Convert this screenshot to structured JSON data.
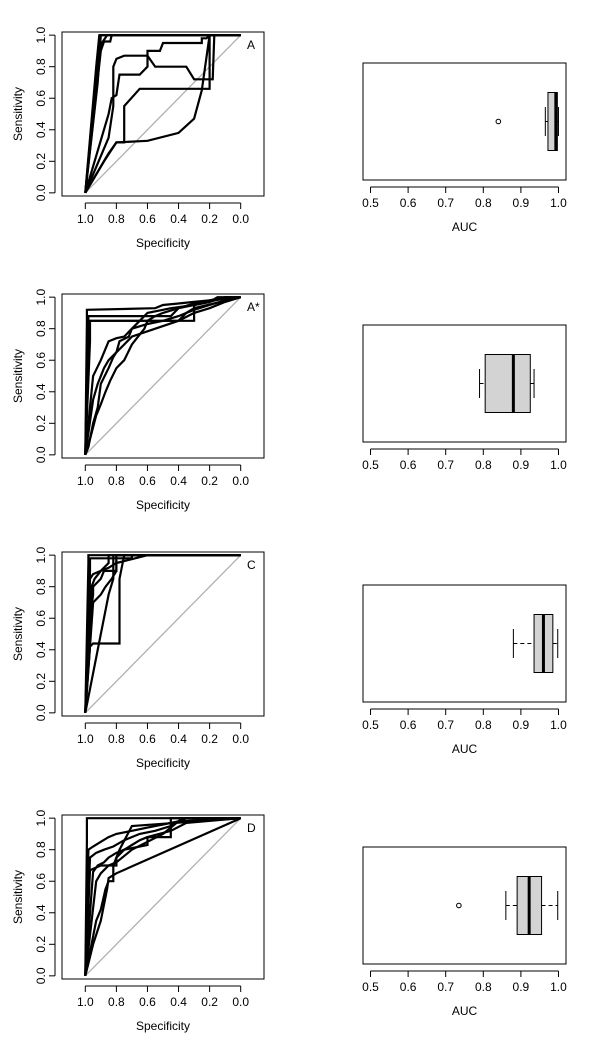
{
  "chart_data": [
    {
      "type": "line",
      "panel_label": "A",
      "xlabel": "Specificity",
      "ylabel": "Sensitivity",
      "x_ticks": [
        "1.0",
        "0.8",
        "0.6",
        "0.4",
        "0.2",
        "0.0"
      ],
      "y_ticks": [
        "0.0",
        "0.2",
        "0.4",
        "0.6",
        "0.8",
        "1.0"
      ],
      "xlim": [
        1.15,
        -0.15
      ],
      "ylim": [
        -0.02,
        1.02
      ],
      "x_reversed": true,
      "series": [
        {
          "x": [
            1.0,
            0.92,
            0.9,
            0.0
          ],
          "y": [
            0.0,
            0.7,
            1.0,
            1.0
          ]
        },
        {
          "x": [
            1.0,
            0.93,
            0.91,
            0.0
          ],
          "y": [
            0.0,
            0.8,
            1.0,
            1.0
          ]
        },
        {
          "x": [
            1.0,
            0.92,
            0.9,
            0.88,
            0.86,
            0.0
          ],
          "y": [
            0.0,
            0.85,
            0.94,
            0.97,
            1.0,
            1.0
          ]
        },
        {
          "x": [
            1.0,
            0.9,
            0.88,
            0.84,
            0.83,
            0.0
          ],
          "y": [
            0.0,
            0.9,
            0.96,
            0.96,
            1.0,
            1.0
          ]
        },
        {
          "x": [
            1.0,
            0.85,
            0.83,
            0.8,
            0.78,
            0.65,
            0.6,
            0.6,
            0.52,
            0.5,
            0.25,
            0.25,
            0.22,
            0.2,
            0.0
          ],
          "y": [
            0.0,
            0.5,
            0.6,
            0.62,
            0.75,
            0.75,
            0.8,
            0.9,
            0.9,
            0.95,
            0.95,
            0.98,
            0.98,
            1.0,
            1.0
          ]
        },
        {
          "x": [
            1.0,
            0.85,
            0.82,
            0.82,
            0.8,
            0.75,
            0.6,
            0.55,
            0.35,
            0.3,
            0.18,
            0.17,
            0.0
          ],
          "y": [
            0.0,
            0.35,
            0.55,
            0.8,
            0.85,
            0.87,
            0.87,
            0.8,
            0.8,
            0.72,
            0.72,
            1.0,
            1.0
          ]
        },
        {
          "x": [
            1.0,
            0.88,
            0.8,
            0.75,
            0.75,
            0.65,
            0.65,
            0.3,
            0.2,
            0.2,
            0.0
          ],
          "y": [
            0.0,
            0.2,
            0.32,
            0.32,
            0.55,
            0.66,
            0.66,
            0.66,
            0.66,
            1.0,
            1.0
          ]
        },
        {
          "x": [
            1.0,
            0.85,
            0.8,
            0.6,
            0.4,
            0.3,
            0.25,
            0.2,
            0.0
          ],
          "y": [
            0.0,
            0.25,
            0.32,
            0.33,
            0.38,
            0.47,
            0.65,
            1.0,
            1.0
          ]
        }
      ]
    },
    {
      "type": "boxplot",
      "xlabel": "AUC",
      "x_ticks": [
        "0.5",
        "0.6",
        "0.7",
        "0.8",
        "0.9",
        "1.0"
      ],
      "xlim": [
        0.48,
        1.02
      ],
      "box": {
        "whisker_low": 0.965,
        "q1": 0.972,
        "median": 0.993,
        "q3": 0.997,
        "whisker_high": 1.0,
        "outliers": [
          0.84
        ]
      }
    },
    {
      "type": "line",
      "panel_label": "A*",
      "xlabel": "Specificity",
      "ylabel": "Sensitivity",
      "x_ticks": [
        "1.0",
        "0.8",
        "0.6",
        "0.4",
        "0.2",
        "0.0"
      ],
      "y_ticks": [
        "0.0",
        "0.2",
        "0.4",
        "0.6",
        "0.8",
        "1.0"
      ],
      "xlim": [
        1.15,
        -0.15
      ],
      "ylim": [
        -0.02,
        1.02
      ],
      "x_reversed": true,
      "series": [
        {
          "x": [
            1.0,
            0.99,
            0.99,
            0.55,
            0.5,
            0.4,
            0.3,
            0.2,
            0.1,
            0.0
          ],
          "y": [
            0.0,
            0.84,
            0.92,
            0.93,
            0.95,
            0.96,
            0.97,
            0.98,
            1.0,
            1.0
          ]
        },
        {
          "x": [
            1.0,
            0.98,
            0.98,
            0.45,
            0.4,
            0.3,
            0.2,
            0.1,
            0.0
          ],
          "y": [
            0.0,
            0.88,
            0.88,
            0.88,
            0.93,
            0.95,
            0.97,
            1.0,
            1.0
          ]
        },
        {
          "x": [
            1.0,
            0.98,
            0.98,
            0.3,
            0.3,
            0.2,
            0.15,
            0.0
          ],
          "y": [
            0.0,
            0.82,
            0.85,
            0.85,
            0.95,
            0.97,
            1.0,
            1.0
          ]
        },
        {
          "x": [
            1.0,
            0.97,
            0.97,
            0.4,
            0.35,
            0.3,
            0.0
          ],
          "y": [
            0.0,
            0.72,
            0.85,
            0.85,
            0.9,
            0.93,
            1.0
          ]
        },
        {
          "x": [
            1.0,
            0.95,
            0.9,
            0.85,
            0.8,
            0.75,
            0.7,
            0.65,
            0.6,
            0.5,
            0.45,
            0.3,
            0.2,
            0.0
          ],
          "y": [
            0.0,
            0.5,
            0.6,
            0.72,
            0.74,
            0.75,
            0.8,
            0.85,
            0.9,
            0.92,
            0.93,
            0.95,
            0.98,
            1.0
          ]
        },
        {
          "x": [
            1.0,
            0.95,
            0.92,
            0.88,
            0.85,
            0.8,
            0.78,
            0.72,
            0.7,
            0.6,
            0.5,
            0.4,
            0.3,
            0.2,
            0.1,
            0.0
          ],
          "y": [
            0.0,
            0.35,
            0.45,
            0.55,
            0.6,
            0.65,
            0.72,
            0.75,
            0.8,
            0.83,
            0.85,
            0.88,
            0.92,
            0.95,
            0.98,
            1.0
          ]
        },
        {
          "x": [
            1.0,
            0.97,
            0.93,
            0.9,
            0.87,
            0.84,
            0.8,
            0.75,
            0.7,
            0.66,
            0.62,
            0.6,
            0.55,
            0.5,
            0.4,
            0.3,
            0.1,
            0.0
          ],
          "y": [
            0.0,
            0.1,
            0.25,
            0.32,
            0.4,
            0.47,
            0.55,
            0.6,
            0.7,
            0.75,
            0.8,
            0.85,
            0.88,
            0.9,
            0.93,
            0.96,
            0.99,
            1.0
          ]
        },
        {
          "x": [
            1.0,
            0.98,
            0.95,
            0.92,
            0.9,
            0.85,
            0.82,
            0.8,
            0.75,
            0.7,
            0.55,
            0.4,
            0.3,
            0.2,
            0.1,
            0.0
          ],
          "y": [
            0.0,
            0.05,
            0.2,
            0.3,
            0.45,
            0.55,
            0.62,
            0.65,
            0.7,
            0.75,
            0.8,
            0.85,
            0.9,
            0.93,
            0.97,
            1.0
          ]
        }
      ]
    },
    {
      "type": "boxplot",
      "xlabel": "",
      "x_ticks": [
        "0.5",
        "0.6",
        "0.7",
        "0.8",
        "0.9",
        "1.0"
      ],
      "xlim": [
        0.48,
        1.02
      ],
      "box": {
        "whisker_low": 0.79,
        "q1": 0.805,
        "median": 0.88,
        "q3": 0.925,
        "whisker_high": 0.935,
        "outliers": []
      }
    },
    {
      "type": "line",
      "panel_label": "C",
      "xlabel": "Specificity",
      "ylabel": "Sensitivity",
      "x_ticks": [
        "1.0",
        "0.8",
        "0.6",
        "0.4",
        "0.2",
        "0.0"
      ],
      "y_ticks": [
        "0.0",
        "0.2",
        "0.4",
        "0.6",
        "0.8",
        "1.0"
      ],
      "xlim": [
        1.15,
        -0.15
      ],
      "ylim": [
        -0.02,
        1.02
      ],
      "x_reversed": true,
      "series": [
        {
          "x": [
            1.0,
            0.98,
            0.98,
            0.0
          ],
          "y": [
            0.0,
            0.95,
            1.0,
            1.0
          ]
        },
        {
          "x": [
            1.0,
            0.97,
            0.97,
            0.8,
            0.8,
            0.0
          ],
          "y": [
            0.0,
            0.9,
            0.98,
            0.98,
            1.0,
            1.0
          ]
        },
        {
          "x": [
            1.0,
            0.97,
            0.95,
            0.9,
            0.85,
            0.8,
            0.8,
            0.7,
            0.7,
            0.0
          ],
          "y": [
            0.0,
            0.85,
            0.88,
            0.9,
            0.92,
            0.95,
            0.98,
            0.98,
            1.0,
            1.0
          ]
        },
        {
          "x": [
            1.0,
            0.96,
            0.94,
            0.9,
            0.85,
            0.85,
            0.0
          ],
          "y": [
            0.0,
            0.8,
            0.85,
            0.9,
            0.95,
            1.0,
            1.0
          ]
        },
        {
          "x": [
            1.0,
            0.95,
            0.9,
            0.87,
            0.83,
            0.8,
            0.8,
            0.6,
            0.0
          ],
          "y": [
            0.0,
            0.7,
            0.75,
            0.8,
            0.85,
            0.9,
            0.95,
            1.0,
            1.0
          ]
        },
        {
          "x": [
            1.0,
            0.97,
            0.95,
            0.95,
            0.9,
            0.88,
            0.8,
            0.8,
            0.0
          ],
          "y": [
            0.0,
            0.6,
            0.75,
            0.8,
            0.85,
            0.9,
            0.9,
            1.0,
            1.0
          ]
        },
        {
          "x": [
            1.0,
            0.97,
            0.95,
            0.78,
            0.78,
            0.75,
            0.0
          ],
          "y": [
            0.0,
            0.42,
            0.44,
            0.44,
            0.85,
            1.0,
            1.0
          ]
        },
        {
          "x": [
            1.0,
            0.85,
            0.82,
            0.82,
            0.0
          ],
          "y": [
            0.0,
            0.75,
            0.85,
            1.0,
            1.0
          ]
        }
      ]
    },
    {
      "type": "boxplot",
      "xlabel": "AUC",
      "x_ticks": [
        "0.5",
        "0.6",
        "0.7",
        "0.8",
        "0.9",
        "1.0"
      ],
      "xlim": [
        0.48,
        1.02
      ],
      "box": {
        "whisker_low": 0.88,
        "q1": 0.935,
        "median": 0.96,
        "q3": 0.985,
        "whisker_high": 0.998,
        "outliers": []
      }
    },
    {
      "type": "line",
      "panel_label": "D",
      "xlabel": "Specificity",
      "ylabel": "Sensitivity",
      "x_ticks": [
        "1.0",
        "0.8",
        "0.6",
        "0.4",
        "0.2",
        "0.0"
      ],
      "y_ticks": [
        "0.0",
        "0.2",
        "0.4",
        "0.6",
        "0.8",
        "1.0"
      ],
      "xlim": [
        1.15,
        -0.15
      ],
      "ylim": [
        -0.02,
        1.02
      ],
      "x_reversed": true,
      "series": [
        {
          "x": [
            1.0,
            0.99,
            0.99,
            0.0
          ],
          "y": [
            0.0,
            0.85,
            1.0,
            1.0
          ]
        },
        {
          "x": [
            1.0,
            0.98,
            0.95,
            0.9,
            0.85,
            0.8,
            0.7,
            0.6,
            0.5,
            0.4,
            0.38,
            0.0
          ],
          "y": [
            0.0,
            0.8,
            0.82,
            0.85,
            0.88,
            0.9,
            0.92,
            0.94,
            0.96,
            0.98,
            1.0,
            1.0
          ]
        },
        {
          "x": [
            1.0,
            0.97,
            0.93,
            0.88,
            0.82,
            0.75,
            0.65,
            0.55,
            0.45,
            0.4,
            0.35,
            0.0
          ],
          "y": [
            0.0,
            0.75,
            0.78,
            0.8,
            0.82,
            0.86,
            0.9,
            0.92,
            0.95,
            0.98,
            1.0,
            1.0
          ]
        },
        {
          "x": [
            1.0,
            0.97,
            0.9,
            0.85,
            0.8,
            0.7,
            0.6,
            0.5,
            0.4,
            0.0
          ],
          "y": [
            0.0,
            0.67,
            0.7,
            0.7,
            0.72,
            0.8,
            0.85,
            0.9,
            0.98,
            1.0
          ]
        },
        {
          "x": [
            1.0,
            0.95,
            0.92,
            0.88,
            0.85,
            0.8,
            0.75,
            0.7,
            0.65,
            0.6,
            0.45,
            0.35,
            0.0
          ],
          "y": [
            0.0,
            0.66,
            0.7,
            0.72,
            0.75,
            0.78,
            0.8,
            0.83,
            0.86,
            0.88,
            0.92,
            0.97,
            1.0
          ]
        },
        {
          "x": [
            1.0,
            0.93,
            0.9,
            0.85,
            0.8,
            0.8,
            0.75,
            0.6,
            0.6,
            0.45,
            0.45,
            0.0
          ],
          "y": [
            0.0,
            0.6,
            0.65,
            0.7,
            0.7,
            0.75,
            0.8,
            0.83,
            0.88,
            0.88,
            1.0,
            1.0
          ]
        },
        {
          "x": [
            1.0,
            0.93,
            0.9,
            0.87,
            0.85,
            0.82,
            0.82,
            0.78,
            0.7,
            0.0
          ],
          "y": [
            0.0,
            0.35,
            0.42,
            0.55,
            0.6,
            0.6,
            0.7,
            0.8,
            0.95,
            1.0
          ]
        },
        {
          "x": [
            1.0,
            0.95,
            0.9,
            0.86,
            0.85,
            0.8,
            0.0
          ],
          "y": [
            0.0,
            0.2,
            0.35,
            0.55,
            0.62,
            0.65,
            1.0
          ]
        }
      ]
    },
    {
      "type": "boxplot",
      "xlabel": "AUC",
      "x_ticks": [
        "0.5",
        "0.6",
        "0.7",
        "0.8",
        "0.9",
        "1.0"
      ],
      "xlim": [
        0.48,
        1.02
      ],
      "box": {
        "whisker_low": 0.86,
        "q1": 0.89,
        "median": 0.922,
        "q3": 0.955,
        "whisker_high": 0.998,
        "outliers": [
          0.735
        ]
      }
    }
  ]
}
